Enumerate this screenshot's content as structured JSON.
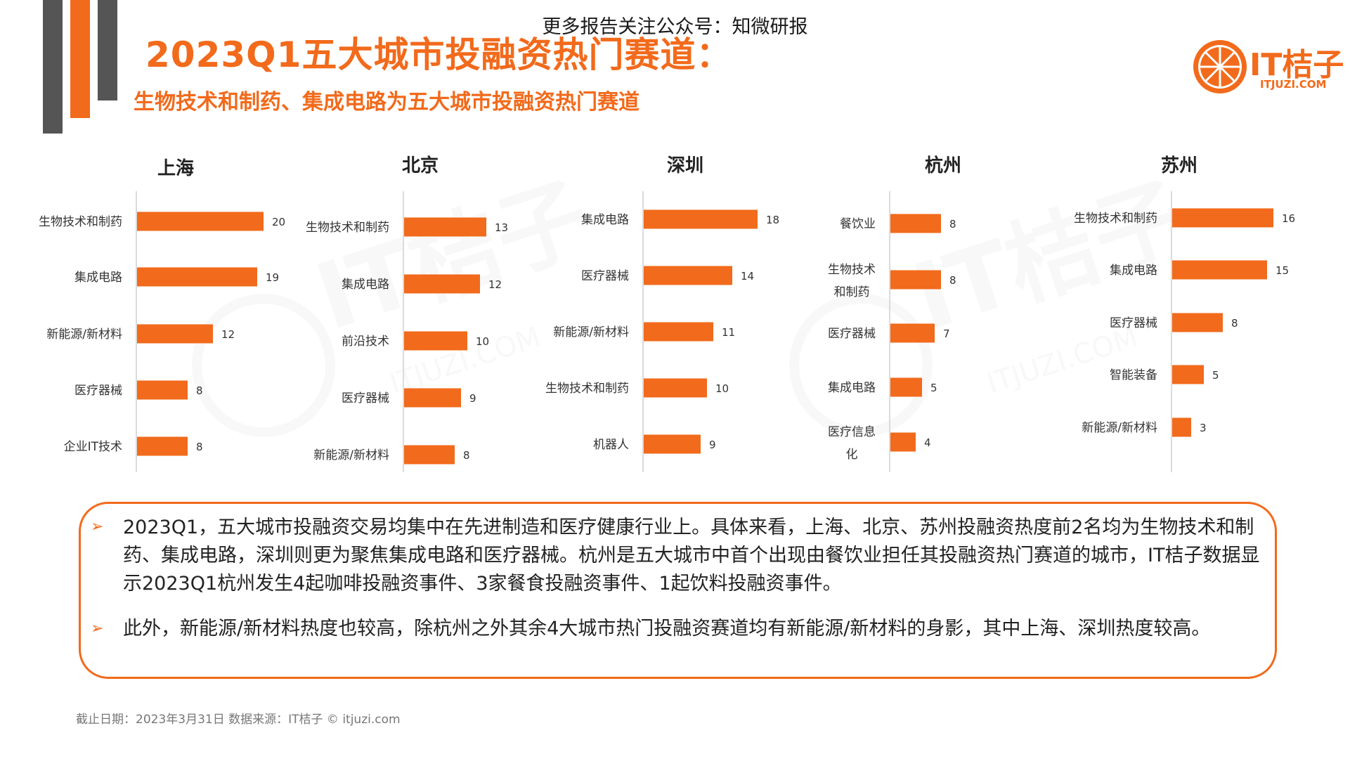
{
  "header": {
    "top_note": "更多报告关注公众号：知微研报",
    "title": "2023Q1五大城市投融资热门赛道：",
    "subtitle": "生物技术和制药、集成电路为五大城市投融资热门赛道"
  },
  "logo": {
    "text": "IT桔子",
    "url": "ITJUZI.COM",
    "color": "#f26a1b"
  },
  "watermark": {
    "text": "IT桔子",
    "url": "ITJUZI.COM"
  },
  "colors": {
    "accent": "#f26a1b",
    "dark_bar": "#555555"
  },
  "chart_data": [
    {
      "type": "bar",
      "orientation": "horizontal",
      "title": "上海",
      "categories": [
        "生物技术和制药",
        "集成电路",
        "新能源/新材料",
        "医疗器械",
        "企业IT技术"
      ],
      "values": [
        20,
        19,
        12,
        8,
        8
      ]
    },
    {
      "type": "bar",
      "orientation": "horizontal",
      "title": "北京",
      "categories": [
        "生物技术和制药",
        "集成电路",
        "前沿技术",
        "医疗器械",
        "新能源/新材料"
      ],
      "values": [
        13,
        12,
        10,
        9,
        8
      ]
    },
    {
      "type": "bar",
      "orientation": "horizontal",
      "title": "深圳",
      "categories": [
        "集成电路",
        "医疗器械",
        "新能源/新材料",
        "生物技术和制药",
        "机器人"
      ],
      "values": [
        18,
        14,
        11,
        10,
        9
      ]
    },
    {
      "type": "bar",
      "orientation": "horizontal",
      "title": "杭州",
      "categories": [
        "餐饮业",
        "生物技术和制药",
        "医疗器械",
        "集成电路",
        "医疗信息化"
      ],
      "values": [
        8,
        8,
        7,
        5,
        4
      ]
    },
    {
      "type": "bar",
      "orientation": "horizontal",
      "title": "苏州",
      "categories": [
        "生物技术和制药",
        "集成电路",
        "医疗器械",
        "智能装备",
        "新能源/新材料"
      ],
      "values": [
        16,
        15,
        8,
        5,
        3
      ]
    }
  ],
  "notes": {
    "bullet_icon": "arrow-bullet-icon",
    "bullet_char": "➢",
    "items": [
      "2023Q1，五大城市投融资交易均集中在先进制造和医疗健康行业上。具体来看，上海、北京、苏州投融资热度前2名均为生物技术和制药、集成电路，深圳则更为聚焦集成电路和医疗器械。杭州是五大城市中首个出现由餐饮业担任其投融资热门赛道的城市，IT桔子数据显示2023Q1杭州发生4起咖啡投融资事件、3家餐食投融资事件、1起饮料投融资事件。",
      "此外，新能源/新材料热度也较高，除杭州之外其余4大城市热门投融资赛道均有新能源/新材料的身影，其中上海、深圳热度较高。"
    ]
  },
  "footer": {
    "text": "截止日期：2023年3月31日    数据来源：IT桔子 © itjuzi.com"
  }
}
